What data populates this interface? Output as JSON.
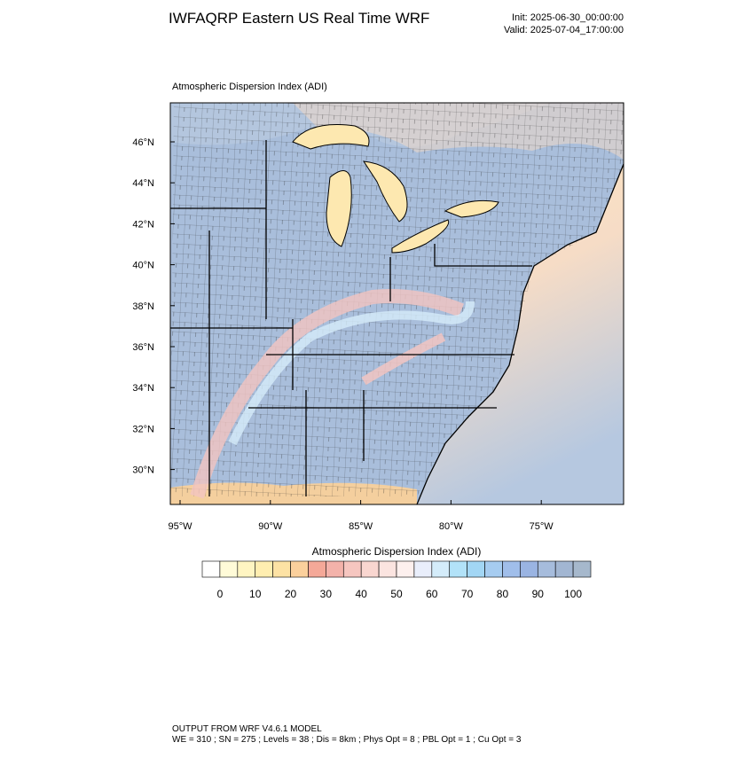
{
  "header": {
    "title": "IWFAQRP Eastern US Real Time WRF",
    "init": "Init: 2025-06-30_00:00:00",
    "valid": "Valid: 2025-07-04_17:00:00"
  },
  "map": {
    "title": "Atmospheric Dispersion Index   (ADI)",
    "lat_labels": [
      "46°N",
      "44°N",
      "42°N",
      "40°N",
      "38°N",
      "36°N",
      "34°N",
      "32°N",
      "30°N"
    ],
    "lon_labels": [
      "95°W",
      "90°W",
      "85°W",
      "80°W",
      "75°W"
    ]
  },
  "colorbar": {
    "title": "Atmospheric Dispersion Index  (ADI)",
    "labels": [
      0,
      10,
      20,
      30,
      40,
      50,
      60,
      70,
      80,
      90,
      100
    ],
    "colors": [
      "#ffffff",
      "#fffbd8",
      "#fff5c2",
      "#ffeeb0",
      "#fde2a4",
      "#fbd09c",
      "#f4a898",
      "#f3b2aa",
      "#f6c6c0",
      "#f9d6d0",
      "#fbe4e0",
      "#fdf0ee",
      "#e9eefb",
      "#d4ecfa",
      "#b2e2f8",
      "#a2d6f4",
      "#a6ccf0",
      "#a0beea",
      "#9ab4e2",
      "#a6bcdc",
      "#a2b6d2",
      "#a6b8cc"
    ]
  },
  "footer": {
    "line1": "OUTPUT FROM WRF V4.6.1 MODEL",
    "line2": "WE = 310 ; SN = 275 ; Levels = 38 ; Dis = 8km ; Phys Opt = 8 ; PBL Opt = 1 ; Cu Opt = 3"
  }
}
